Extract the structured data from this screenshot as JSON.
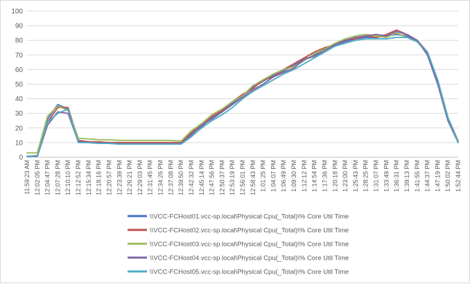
{
  "chart_data": {
    "type": "line",
    "title": "",
    "xlabel": "",
    "ylabel": "",
    "ylim": [
      0,
      100
    ],
    "yticks": [
      0,
      10,
      20,
      30,
      40,
      50,
      60,
      70,
      80,
      90,
      100
    ],
    "grid": true,
    "legend_position": "bottom",
    "categories": [
      "11:59:23 AM",
      "12:02:05 PM",
      "12:04:47 PM",
      "12:07:28 PM",
      "12:10:10 PM",
      "12:12:52 PM",
      "12:15:34 PM",
      "12:18:16 PM",
      "12:20:57 PM",
      "12:23:39 PM",
      "12:26:21 PM",
      "12:29:03 PM",
      "12:31:45 PM",
      "12:34:26 PM",
      "12:37:08 PM",
      "12:39:50 PM",
      "12:42:32 PM",
      "12:45:14 PM",
      "12:47:56 PM",
      "12:50:37 PM",
      "12:53:19 PM",
      "12:56:01 PM",
      "12:58:43 PM",
      "1:01:25 PM",
      "1:04:07 PM",
      "1:06:49 PM",
      "1:09:30 PM",
      "1:12:12 PM",
      "1:14:54 PM",
      "1:17:36 PM",
      "1:20:18 PM",
      "1:23:00 PM",
      "1:25:43 PM",
      "1:28:25 PM",
      "1:31:07 PM",
      "1:33:49 PM",
      "1:36:31 PM",
      "1:39:13 PM",
      "1:41:55 PM",
      "1:44:37 PM",
      "1:47:19 PM",
      "1:50:02 PM",
      "1:52:44 PM"
    ],
    "series": [
      {
        "name": "\\\\VCC-FCHost01.vcc-sp.local\\Physical Cpu(_Total)\\% Core Util Time",
        "color": "#4472c4",
        "values": [
          0.5,
          0.5,
          26,
          36,
          33,
          11,
          10.5,
          10,
          10,
          9.5,
          9.5,
          9.5,
          9.5,
          9.5,
          9.5,
          9.5,
          16,
          21,
          27,
          31,
          37,
          42,
          48,
          52,
          56,
          59,
          63,
          67,
          70,
          74,
          76,
          79,
          81,
          82,
          82,
          83,
          84,
          83,
          80,
          70,
          50,
          25,
          10
        ]
      },
      {
        "name": "\\\\VCC-FCHost02.vcc-sp.local\\Physical Cpu(_Total)\\% Core Util Time",
        "color": "#c0504d",
        "values": [
          0.5,
          1,
          24,
          34,
          34,
          11.5,
          10.5,
          10.5,
          10,
          10,
          10,
          10,
          10,
          10,
          10,
          10,
          17,
          22,
          28,
          32,
          38,
          43,
          47,
          53,
          55,
          60,
          64,
          68,
          72,
          75,
          77,
          80,
          81,
          83,
          82,
          84,
          87,
          84,
          80,
          72,
          52,
          27,
          11
        ]
      },
      {
        "name": "\\\\VCC-FCHost03.vcc-sp.local\\Physical Cpu(_Total)\\% Core Util Time",
        "color": "#9bbb59",
        "values": [
          3,
          3,
          28,
          35,
          32,
          13,
          12.5,
          12,
          12,
          11.5,
          11.5,
          11.5,
          11.5,
          11.5,
          11.5,
          11,
          18,
          23,
          29,
          33,
          38,
          42,
          49,
          53,
          57,
          60,
          62,
          66,
          71,
          74,
          78,
          81,
          83,
          84,
          83,
          82,
          85,
          82,
          79,
          71,
          51,
          26,
          11
        ]
      },
      {
        "name": "\\\\VCC-FCHost04.vcc-sp.local\\Physical Cpu(_Total)\\% Core Util Time",
        "color": "#8064a2",
        "values": [
          0.5,
          0.5,
          22,
          31,
          30,
          10.5,
          10,
          9.5,
          9.5,
          9,
          9,
          9,
          9,
          9,
          9,
          9,
          15,
          22,
          26,
          31,
          36,
          41,
          46,
          50,
          55,
          58,
          61,
          67,
          69,
          73,
          77,
          80,
          82,
          83,
          84,
          83,
          86,
          84,
          80,
          70,
          51,
          26,
          10
        ]
      },
      {
        "name": "\\\\VCC-FCHost05.vcc-sp.local\\Physical Cpu(_Total)\\% Core Util Time",
        "color": "#4bacc6",
        "values": [
          0.5,
          0.5,
          24,
          30,
          33,
          10,
          10,
          9.5,
          9.5,
          9,
          9,
          9,
          9,
          9,
          9,
          9,
          14,
          20,
          25,
          29,
          34,
          40,
          45,
          49,
          53,
          57,
          60,
          64,
          68,
          72,
          76,
          78,
          80,
          81,
          81,
          81,
          82,
          82,
          79,
          72,
          53,
          27,
          10
        ]
      }
    ]
  }
}
